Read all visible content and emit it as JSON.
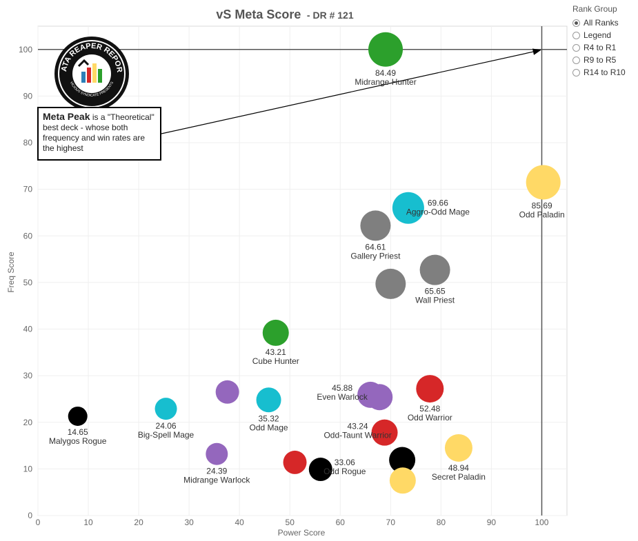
{
  "title": {
    "main": "vS Meta Score",
    "sub": "- DR # 121"
  },
  "rank_group": {
    "title": "Rank Group",
    "options": [
      "All Ranks",
      "Legend",
      "R4 to R1",
      "R9 to R5",
      "R14 to R10"
    ],
    "selected": "All Ranks"
  },
  "annotation": {
    "strong": "Meta Peak",
    "text": " is a \"Theoretical\" best deck - whose both frequency and win rates are the highest"
  },
  "logo": {
    "text": "DATA REAPER REPORT",
    "subtext": "VICIOUS SYNDICATE PRESENTS"
  },
  "colors": {
    "green": "#2ca02c",
    "cyan": "#17becf",
    "gray": "#7f7f7f",
    "purple": "#9467bd",
    "black": "#000000",
    "red": "#d62728",
    "yellow": "#ffd966"
  },
  "chart_data": {
    "type": "scatter",
    "xlabel": "Power Score",
    "ylabel": "Freq Score",
    "xlim": [
      0,
      105
    ],
    "ylim": [
      0,
      105
    ],
    "xticks": [
      0,
      10,
      20,
      30,
      40,
      50,
      60,
      70,
      80,
      90,
      100
    ],
    "yticks": [
      0,
      10,
      20,
      30,
      40,
      50,
      60,
      70,
      80,
      90,
      100
    ],
    "grid": true,
    "reference_lines": {
      "x": 100,
      "y": 100
    },
    "points": [
      {
        "x": 69,
        "y": 100,
        "size": 25,
        "color": "green",
        "score": "84.49",
        "name": "Midrange Hunter"
      },
      {
        "x": 100.3,
        "y": 71.5,
        "size": 25,
        "color": "yellow",
        "score": "85.69",
        "name": "Odd Paladin"
      },
      {
        "x": 73.5,
        "y": 66,
        "size": 23,
        "color": "cyan",
        "score": "69.66",
        "name": "Aggro-Odd Mage"
      },
      {
        "x": 67,
        "y": 62.2,
        "size": 22,
        "color": "gray",
        "score": "64.61",
        "name": "Gallery Priest"
      },
      {
        "x": 78.8,
        "y": 52.7,
        "size": 22,
        "color": "gray",
        "score": "65.65",
        "name": "Wall Priest"
      },
      {
        "x": 70,
        "y": 49.7,
        "size": 22,
        "color": "gray",
        "score": "",
        "name": ""
      },
      {
        "x": 47.2,
        "y": 39.2,
        "size": 19,
        "color": "green",
        "score": "43.21",
        "name": "Cube Hunter"
      },
      {
        "x": 77.8,
        "y": 27.2,
        "size": 20,
        "color": "red",
        "score": "52.48",
        "name": "Odd Warrior"
      },
      {
        "x": 66,
        "y": 25.9,
        "size": 19,
        "color": "purple",
        "score": "45.88",
        "name": "Even Warlock"
      },
      {
        "x": 67.8,
        "y": 25.4,
        "size": 19,
        "color": "purple",
        "score": "",
        "name": ""
      },
      {
        "x": 37.6,
        "y": 26.5,
        "size": 17,
        "color": "purple",
        "score": "",
        "name": ""
      },
      {
        "x": 45.8,
        "y": 24.8,
        "size": 18,
        "color": "cyan",
        "score": "35.32",
        "name": "Odd Mage"
      },
      {
        "x": 25.4,
        "y": 22.9,
        "size": 16,
        "color": "cyan",
        "score": "24.06",
        "name": "Big-Spell Mage"
      },
      {
        "x": 7.9,
        "y": 21.3,
        "size": 14,
        "color": "black",
        "score": "14.65",
        "name": "Malygos Rogue"
      },
      {
        "x": 68.8,
        "y": 17.8,
        "size": 19,
        "color": "red",
        "score": "43.24",
        "name": "Odd-Taunt Warrior"
      },
      {
        "x": 83.5,
        "y": 14.5,
        "size": 20,
        "color": "yellow",
        "score": "48.94",
        "name": "Secret Paladin"
      },
      {
        "x": 35.5,
        "y": 13.2,
        "size": 16,
        "color": "purple",
        "score": "24.39",
        "name": "Midrange Warlock"
      },
      {
        "x": 51,
        "y": 11.4,
        "size": 17,
        "color": "red",
        "score": "",
        "name": ""
      },
      {
        "x": 56.1,
        "y": 9.9,
        "size": 17,
        "color": "black",
        "score": "33.06",
        "name": "Odd Rogue"
      },
      {
        "x": 72.3,
        "y": 11.9,
        "size": 19,
        "color": "black",
        "score": "",
        "name": ""
      },
      {
        "x": 72.4,
        "y": 7.5,
        "size": 19,
        "color": "yellow",
        "score": "",
        "name": ""
      }
    ]
  }
}
